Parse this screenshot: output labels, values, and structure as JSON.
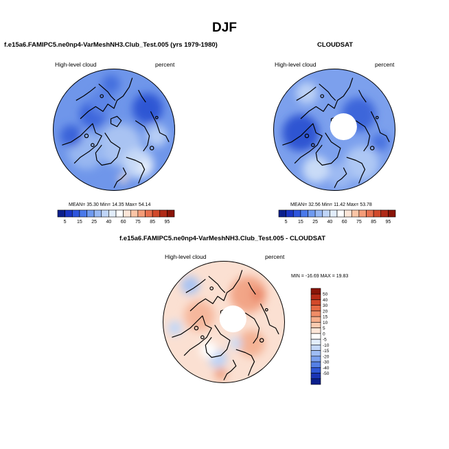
{
  "figure": {
    "title": "DJF"
  },
  "panels": {
    "test": {
      "title": "f.e15a6.FAMIPC5.ne0np4-VarMeshNH3.Club_Test.005 (yrs 1979-1980)",
      "variable": "High-level cloud",
      "units": "percent",
      "stats": {
        "mean_label": "MEAN=",
        "mean": "35.30",
        "min_label": "Min=",
        "min": "14.35",
        "max_label": "Max=",
        "max": "54.14"
      }
    },
    "obs": {
      "title": "CLOUDSAT",
      "variable": "High-level cloud",
      "units": "percent",
      "stats": {
        "mean_label": "MEAN=",
        "mean": "32.56",
        "min_label": "Min=",
        "min": "11.42",
        "max_label": "Max=",
        "max": "53.78"
      }
    },
    "diff": {
      "title": "f.e15a6.FAMIPC5.ne0np4-VarMeshNH3.Club_Test.005 - CLOUDSAT",
      "variable": "High-level cloud",
      "units": "percent",
      "minmax_text": "MIN = -16.69 MAX =  19.83"
    }
  },
  "colorbars": {
    "abs": {
      "labels": [
        "5",
        "15",
        "25",
        "40",
        "60",
        "75",
        "85",
        "95"
      ],
      "colors": [
        "#0b1f8c",
        "#1a36c4",
        "#2e55dd",
        "#4a79ea",
        "#6f9af0",
        "#98b9f4",
        "#bfd5f8",
        "#e2edfb",
        "#ffffff",
        "#fde6d8",
        "#fbc5a6",
        "#f49c78",
        "#e8704e",
        "#d14a2c",
        "#b02a17",
        "#8a1508"
      ]
    },
    "diff": {
      "labels": [
        "50",
        "40",
        "30",
        "20",
        "15",
        "10",
        "5",
        "0",
        "-5",
        "-10",
        "-15",
        "-20",
        "-30",
        "-40",
        "-50"
      ],
      "colors": [
        "#8a1508",
        "#b52a16",
        "#d2492a",
        "#e56a45",
        "#f08d67",
        "#f6ae8b",
        "#fbcbb0",
        "#fde6d8",
        "#ffffff",
        "#e2edfb",
        "#c3d7f8",
        "#9fbdf4",
        "#7aa0ee",
        "#5580e5",
        "#3058d6",
        "#1a34b5",
        "#0b1f8c"
      ]
    }
  },
  "fields": {
    "test": {
      "base": "#6f96ea",
      "blobs": [
        {
          "c": "#a9c3f2",
          "u": 0.1,
          "v": 0.25,
          "r": 0.35
        },
        {
          "c": "#98b7f1",
          "u": -0.45,
          "v": 0.35,
          "r": 0.3
        },
        {
          "c": "#c6d9f7",
          "u": 0.4,
          "v": 0.55,
          "r": 0.25
        },
        {
          "c": "#e6eefb",
          "u": 0.52,
          "v": 0.62,
          "r": 0.12
        },
        {
          "c": "#fde3d3",
          "u": 0.15,
          "v": 0.8,
          "r": 0.07
        },
        {
          "c": "#3c66dc",
          "u": -0.35,
          "v": -0.25,
          "r": 0.22
        },
        {
          "c": "#2f57d4",
          "u": 0.55,
          "v": -0.35,
          "r": 0.25
        },
        {
          "c": "#4470de",
          "u": -0.05,
          "v": -0.75,
          "r": 0.15
        },
        {
          "c": "#3a63d9",
          "u": -0.7,
          "v": 0.1,
          "r": 0.18
        },
        {
          "c": "#b6cdf5",
          "u": 0.7,
          "v": 0.1,
          "r": 0.18
        },
        {
          "c": "#5b84e6",
          "u": -0.2,
          "v": -0.45,
          "r": 0.2
        }
      ]
    },
    "obs": {
      "base": "#7ca0ed",
      "blobs": [
        {
          "c": "#2d55d2",
          "u": -0.55,
          "v": 0.05,
          "r": 0.3
        },
        {
          "c": "#3d66da",
          "u": 0.4,
          "v": -0.25,
          "r": 0.28
        },
        {
          "c": "#aec8f4",
          "u": 0.45,
          "v": 0.55,
          "r": 0.28
        },
        {
          "c": "#c9dbf7",
          "u": -0.3,
          "v": 0.65,
          "r": 0.22
        },
        {
          "c": "#9dbaf2",
          "u": 0.1,
          "v": 0.75,
          "r": 0.2
        },
        {
          "c": "#bcd1f6",
          "u": -0.45,
          "v": -0.6,
          "r": 0.18
        },
        {
          "c": "#4b75e0",
          "u": 0.75,
          "v": 0.2,
          "r": 0.15
        }
      ]
    },
    "diff": {
      "base": "#fbe0d2",
      "blobs": [
        {
          "c": "#f2a587",
          "u": 0.4,
          "v": -0.45,
          "r": 0.3
        },
        {
          "c": "#f6b79c",
          "u": -0.4,
          "v": -0.1,
          "r": 0.25
        },
        {
          "c": "#e98466",
          "u": 0.55,
          "v": -0.45,
          "r": 0.1
        },
        {
          "c": "#f4b294",
          "u": 0.45,
          "v": 0.35,
          "r": 0.22
        },
        {
          "c": "#a9c3f2",
          "u": -0.55,
          "v": -0.6,
          "r": 0.15
        },
        {
          "c": "#c3d7f7",
          "u": -0.8,
          "v": 0.1,
          "r": 0.12
        },
        {
          "c": "#bcd2f6",
          "u": -0.1,
          "v": 0.6,
          "r": 0.15
        },
        {
          "c": "#ffffff",
          "u": -0.25,
          "v": 0.45,
          "r": 0.14
        },
        {
          "c": "#f0a080",
          "u": -0.05,
          "v": 0.85,
          "r": 0.1
        },
        {
          "c": "#c8dbf8",
          "u": 0.2,
          "v": 0.35,
          "r": 0.1
        }
      ]
    }
  },
  "icons": {
    "coastlines": "coastline-icon",
    "polar_hole": "missing-data-icon"
  }
}
